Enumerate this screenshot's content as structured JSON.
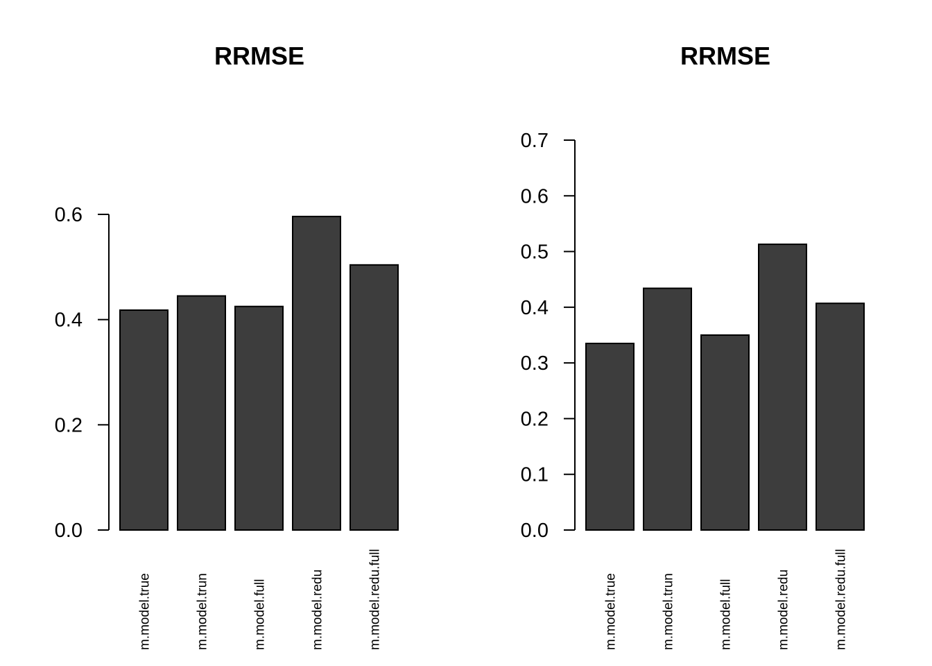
{
  "chart_data": [
    {
      "type": "bar",
      "title": "RRMSE",
      "categories": [
        "m.model.true",
        "m.model.trun",
        "m.model.full",
        "m.model.redu",
        "m.model.redu.full"
      ],
      "values": [
        0.418,
        0.445,
        0.425,
        0.596,
        0.504
      ],
      "yticks": [
        0.0,
        0.2,
        0.4,
        0.6
      ],
      "ytick_labels": [
        "0.0",
        "0.2",
        "0.4",
        "0.6"
      ],
      "ylim": [
        0,
        0.6
      ],
      "bar_color": "#3d3d3d",
      "grid": false,
      "xlabel": "",
      "ylabel": ""
    },
    {
      "type": "bar",
      "title": "RRMSE",
      "categories": [
        "m.model.true",
        "m.model.trun",
        "m.model.full",
        "m.model.redu",
        "m.model.redu.full"
      ],
      "values": [
        0.335,
        0.434,
        0.35,
        0.513,
        0.407
      ],
      "yticks": [
        0.0,
        0.1,
        0.2,
        0.3,
        0.4,
        0.5,
        0.6,
        0.7
      ],
      "ytick_labels": [
        "0.0",
        "0.1",
        "0.2",
        "0.3",
        "0.4",
        "0.5",
        "0.6",
        "0.7"
      ],
      "ylim": [
        0,
        0.7
      ],
      "bar_color": "#3d3d3d",
      "grid": false,
      "xlabel": "",
      "ylabel": ""
    }
  ]
}
